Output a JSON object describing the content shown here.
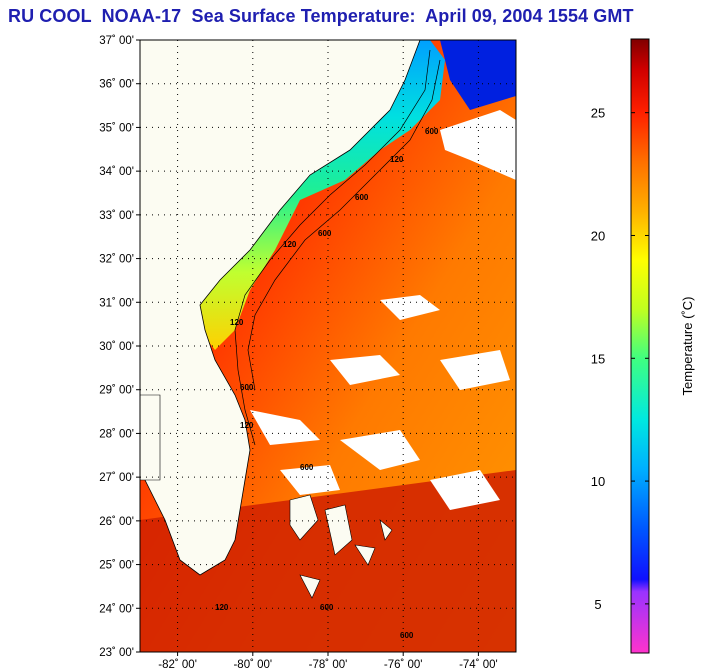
{
  "title": "RU COOL  NOAA-17  Sea Surface Temperature:  April 09, 2004 1554 GMT",
  "map": {
    "region": "US Southeast Atlantic coast and Bahamas",
    "lat_labels": [
      "37˚ 00'",
      "36˚ 00'",
      "35˚ 00'",
      "34˚ 00'",
      "33˚ 00'",
      "32˚ 00'",
      "31˚ 00'",
      "30˚ 00'",
      "29˚ 00'",
      "28˚ 00'",
      "27˚ 00'",
      "26˚ 00'",
      "25˚ 00'",
      "24˚ 00'",
      "23˚ 00'"
    ],
    "lon_labels": [
      "-82˚ 00'",
      "-80˚ 00'",
      "-78˚ 00'",
      "-76˚ 00'",
      "-74˚ 00'"
    ],
    "lat_values": [
      37,
      36,
      35,
      34,
      33,
      32,
      31,
      30,
      29,
      28,
      27,
      26,
      25,
      24,
      23
    ],
    "lon_values": [
      -82,
      -80,
      -78,
      -76,
      -74
    ],
    "extent": {
      "lon_min": -83,
      "lon_max": -73,
      "lat_min": 23,
      "lat_max": 37
    },
    "bathymetry_labels": [
      "600",
      "120",
      "600",
      "120",
      "120",
      "600",
      "120",
      "600",
      "600",
      "120",
      "600",
      "120",
      "600"
    ]
  },
  "colorbar": {
    "title": "Temperature (˚C)",
    "tick_labels": [
      "25",
      "20",
      "15",
      "10",
      "5"
    ],
    "tick_values": [
      25,
      20,
      15,
      10,
      5
    ],
    "range": [
      3,
      28
    ]
  },
  "colors": {
    "title": "#1f1fb0",
    "land": "#fcfcf2",
    "gridline": "#000000"
  }
}
